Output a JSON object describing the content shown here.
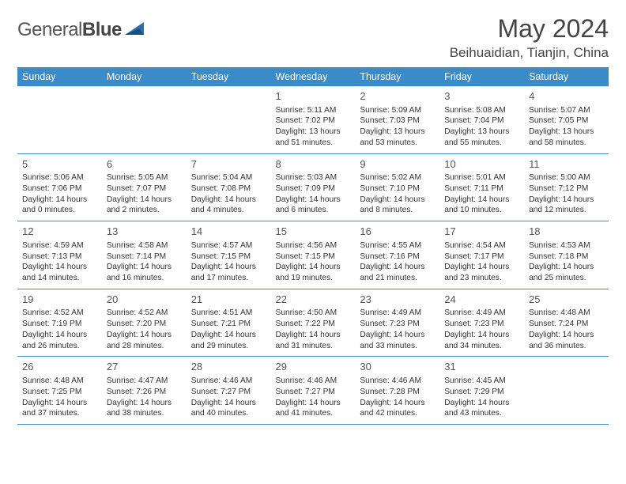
{
  "brand": {
    "part1": "General",
    "part2": "Blue"
  },
  "title": "May 2024",
  "location": "Beihuaidian, Tianjin, China",
  "weekdays": [
    "Sunday",
    "Monday",
    "Tuesday",
    "Wednesday",
    "Thursday",
    "Friday",
    "Saturday"
  ],
  "colors": {
    "header_bg": "#3b8bc9",
    "header_text": "#ffffff",
    "body_text": "#333333",
    "rule": "#3b8bc9"
  },
  "weeks": [
    [
      null,
      null,
      null,
      {
        "d": "1",
        "sr": "5:11 AM",
        "ss": "7:02 PM",
        "dl": "13 hours and 51 minutes."
      },
      {
        "d": "2",
        "sr": "5:09 AM",
        "ss": "7:03 PM",
        "dl": "13 hours and 53 minutes."
      },
      {
        "d": "3",
        "sr": "5:08 AM",
        "ss": "7:04 PM",
        "dl": "13 hours and 55 minutes."
      },
      {
        "d": "4",
        "sr": "5:07 AM",
        "ss": "7:05 PM",
        "dl": "13 hours and 58 minutes."
      }
    ],
    [
      {
        "d": "5",
        "sr": "5:06 AM",
        "ss": "7:06 PM",
        "dl": "14 hours and 0 minutes."
      },
      {
        "d": "6",
        "sr": "5:05 AM",
        "ss": "7:07 PM",
        "dl": "14 hours and 2 minutes."
      },
      {
        "d": "7",
        "sr": "5:04 AM",
        "ss": "7:08 PM",
        "dl": "14 hours and 4 minutes."
      },
      {
        "d": "8",
        "sr": "5:03 AM",
        "ss": "7:09 PM",
        "dl": "14 hours and 6 minutes."
      },
      {
        "d": "9",
        "sr": "5:02 AM",
        "ss": "7:10 PM",
        "dl": "14 hours and 8 minutes."
      },
      {
        "d": "10",
        "sr": "5:01 AM",
        "ss": "7:11 PM",
        "dl": "14 hours and 10 minutes."
      },
      {
        "d": "11",
        "sr": "5:00 AM",
        "ss": "7:12 PM",
        "dl": "14 hours and 12 minutes."
      }
    ],
    [
      {
        "d": "12",
        "sr": "4:59 AM",
        "ss": "7:13 PM",
        "dl": "14 hours and 14 minutes."
      },
      {
        "d": "13",
        "sr": "4:58 AM",
        "ss": "7:14 PM",
        "dl": "14 hours and 16 minutes."
      },
      {
        "d": "14",
        "sr": "4:57 AM",
        "ss": "7:15 PM",
        "dl": "14 hours and 17 minutes."
      },
      {
        "d": "15",
        "sr": "4:56 AM",
        "ss": "7:15 PM",
        "dl": "14 hours and 19 minutes."
      },
      {
        "d": "16",
        "sr": "4:55 AM",
        "ss": "7:16 PM",
        "dl": "14 hours and 21 minutes."
      },
      {
        "d": "17",
        "sr": "4:54 AM",
        "ss": "7:17 PM",
        "dl": "14 hours and 23 minutes."
      },
      {
        "d": "18",
        "sr": "4:53 AM",
        "ss": "7:18 PM",
        "dl": "14 hours and 25 minutes."
      }
    ],
    [
      {
        "d": "19",
        "sr": "4:52 AM",
        "ss": "7:19 PM",
        "dl": "14 hours and 26 minutes."
      },
      {
        "d": "20",
        "sr": "4:52 AM",
        "ss": "7:20 PM",
        "dl": "14 hours and 28 minutes."
      },
      {
        "d": "21",
        "sr": "4:51 AM",
        "ss": "7:21 PM",
        "dl": "14 hours and 29 minutes."
      },
      {
        "d": "22",
        "sr": "4:50 AM",
        "ss": "7:22 PM",
        "dl": "14 hours and 31 minutes."
      },
      {
        "d": "23",
        "sr": "4:49 AM",
        "ss": "7:23 PM",
        "dl": "14 hours and 33 minutes."
      },
      {
        "d": "24",
        "sr": "4:49 AM",
        "ss": "7:23 PM",
        "dl": "14 hours and 34 minutes."
      },
      {
        "d": "25",
        "sr": "4:48 AM",
        "ss": "7:24 PM",
        "dl": "14 hours and 36 minutes."
      }
    ],
    [
      {
        "d": "26",
        "sr": "4:48 AM",
        "ss": "7:25 PM",
        "dl": "14 hours and 37 minutes."
      },
      {
        "d": "27",
        "sr": "4:47 AM",
        "ss": "7:26 PM",
        "dl": "14 hours and 38 minutes."
      },
      {
        "d": "28",
        "sr": "4:46 AM",
        "ss": "7:27 PM",
        "dl": "14 hours and 40 minutes."
      },
      {
        "d": "29",
        "sr": "4:46 AM",
        "ss": "7:27 PM",
        "dl": "14 hours and 41 minutes."
      },
      {
        "d": "30",
        "sr": "4:46 AM",
        "ss": "7:28 PM",
        "dl": "14 hours and 42 minutes."
      },
      {
        "d": "31",
        "sr": "4:45 AM",
        "ss": "7:29 PM",
        "dl": "14 hours and 43 minutes."
      },
      null
    ]
  ],
  "labels": {
    "sunrise": "Sunrise: ",
    "sunset": "Sunset: ",
    "daylight": "Daylight: "
  }
}
